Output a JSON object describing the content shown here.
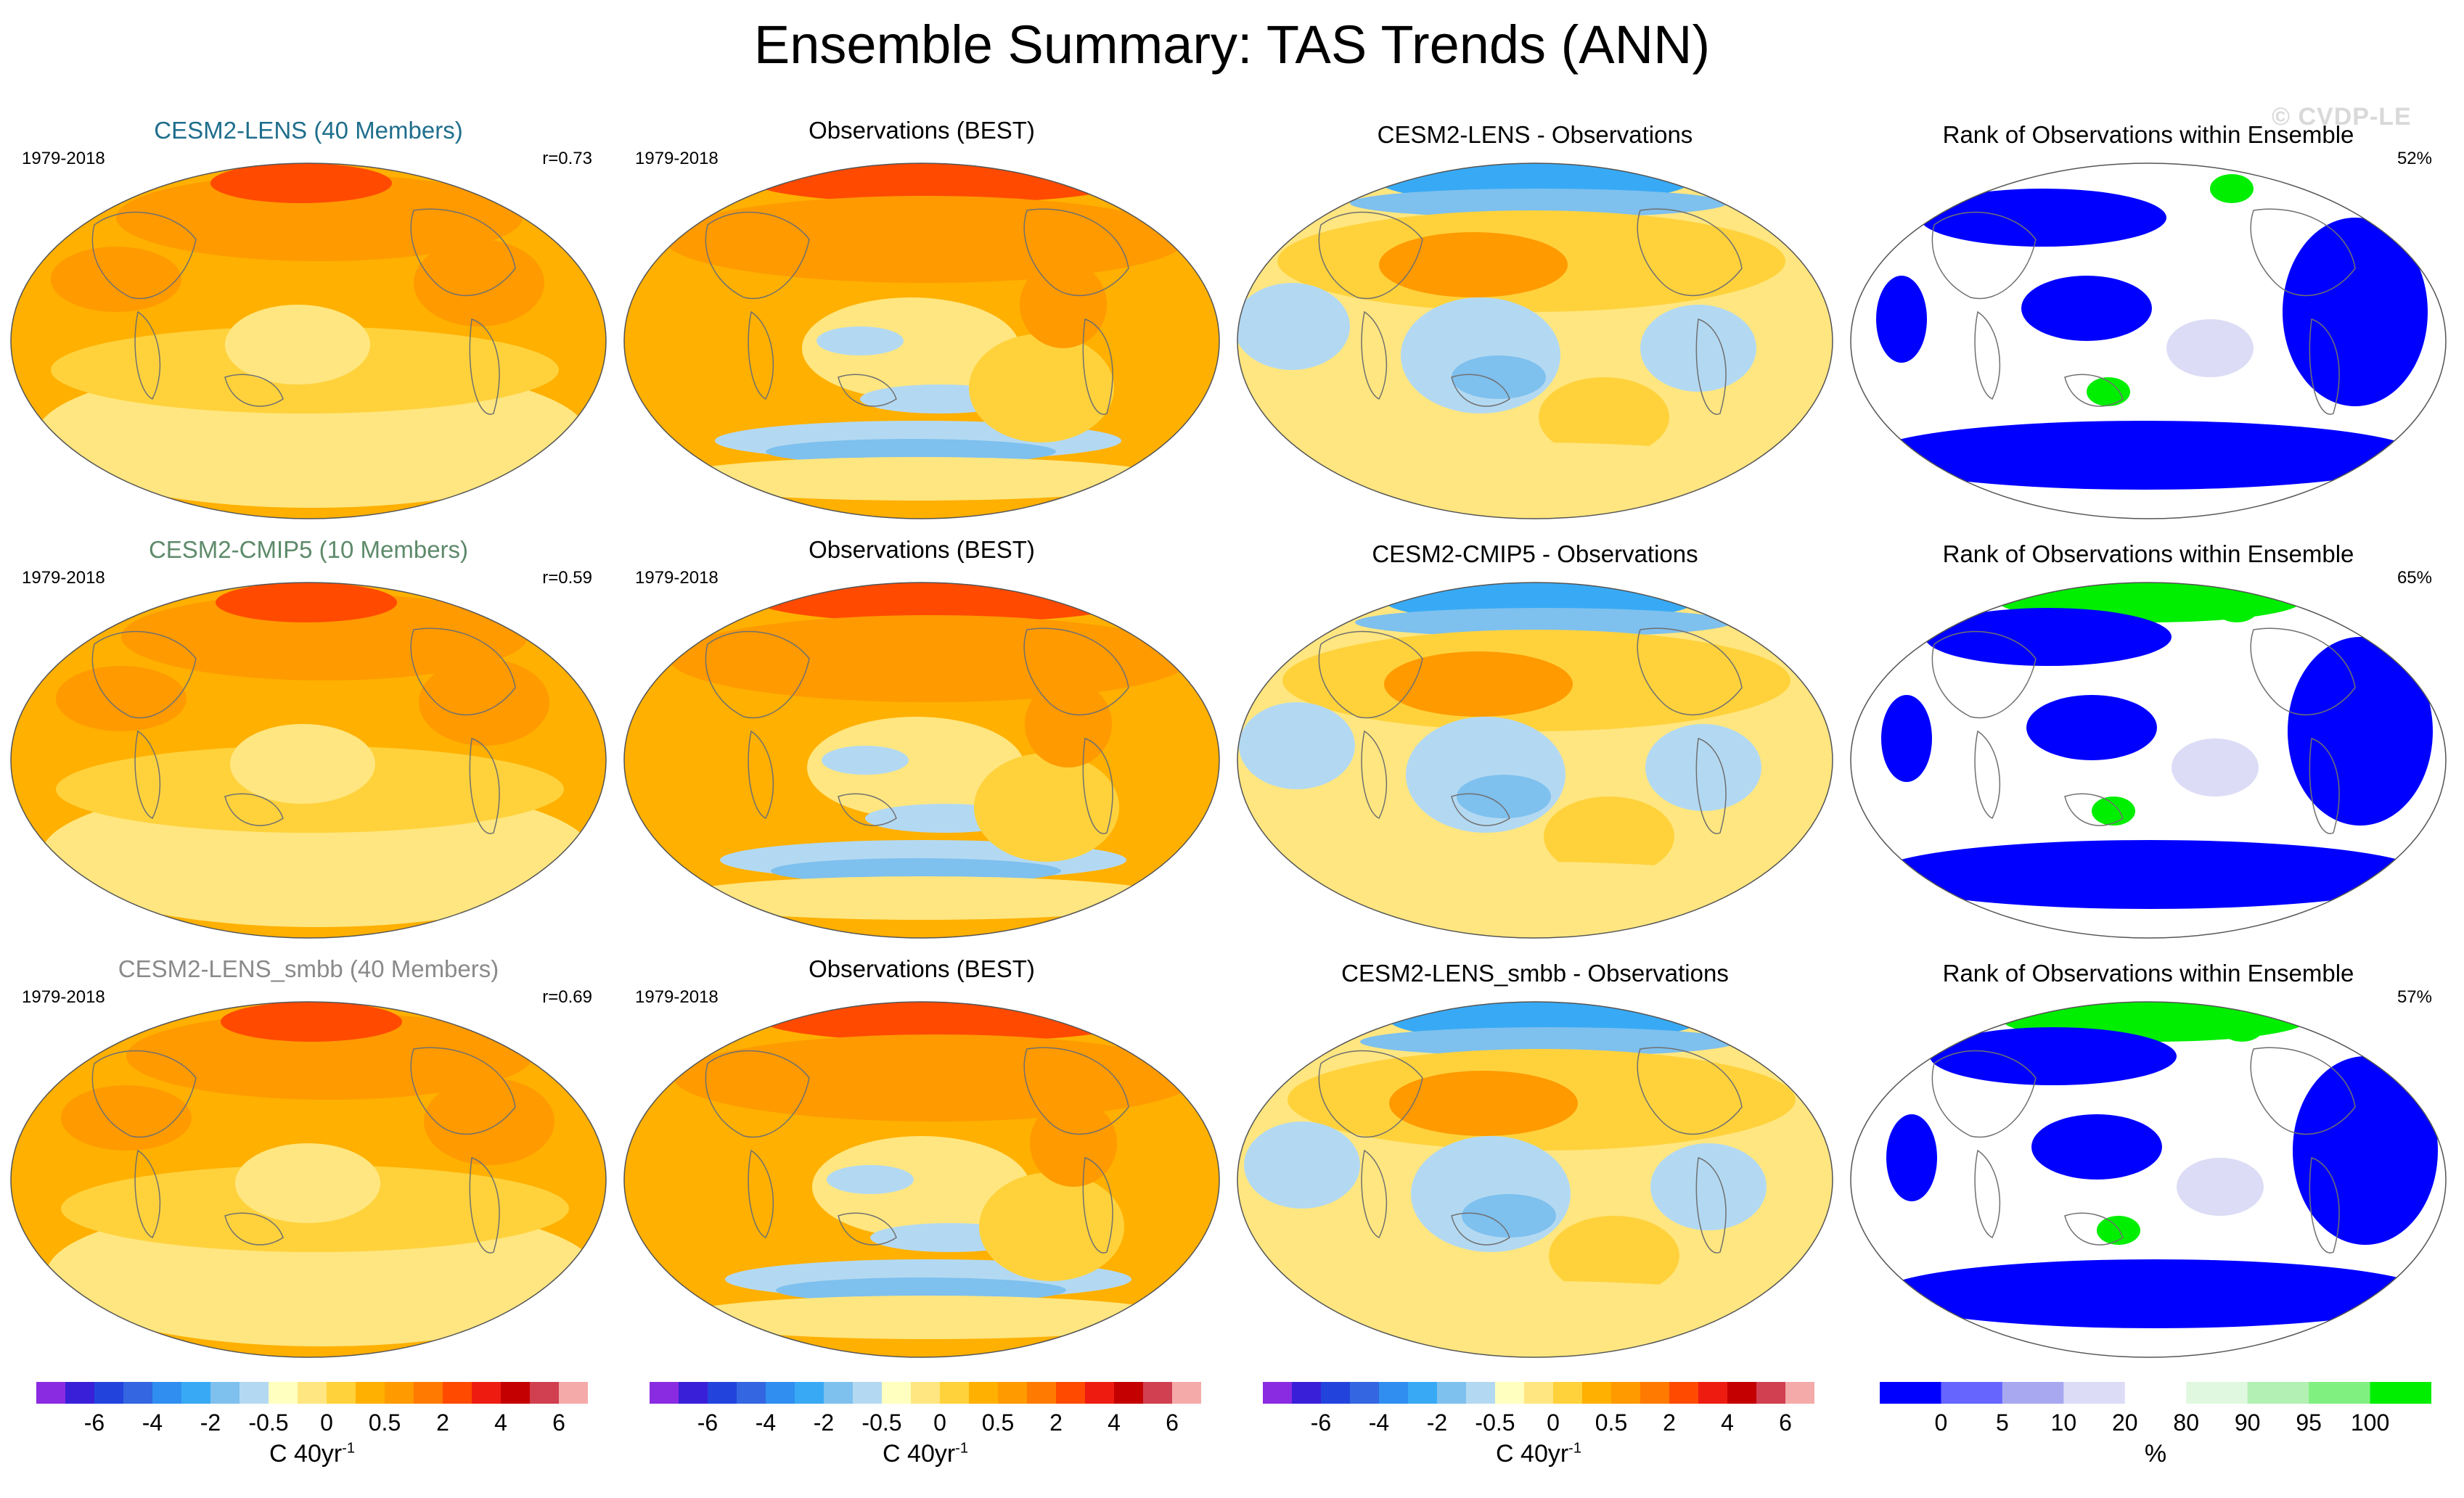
{
  "figure": {
    "title": "Ensemble Summary: TAS Trends (ANN)",
    "watermark": "© CVDP-LE"
  },
  "rows": [
    {
      "model_label": "CESM2-LENS (40 Members)",
      "model_label_color": "#1f6e8c",
      "period": "1979-2018",
      "correlation": "r=0.73",
      "obs_label": "Observations (BEST)",
      "diff_label": "CESM2-LENS - Observations",
      "rank_label": "Rank of Observations within Ensemble",
      "rank_pct": "52%"
    },
    {
      "model_label": "CESM2-CMIP5 (10 Members)",
      "model_label_color": "#5d8a6a",
      "period": "1979-2018",
      "correlation": "r=0.59",
      "obs_label": "Observations (BEST)",
      "diff_label": "CESM2-CMIP5 - Observations",
      "rank_label": "Rank of Observations within Ensemble",
      "rank_pct": "65%"
    },
    {
      "model_label": "CESM2-LENS_smbb (40 Members)",
      "model_label_color": "#8a8a8a",
      "period": "1979-2018",
      "correlation": "r=0.69",
      "obs_label": "Observations (BEST)",
      "diff_label": "CESM2-LENS_smbb - Observations",
      "rank_label": "Rank of Observations within Ensemble",
      "rank_pct": "57%"
    }
  ],
  "trend_colorbar": {
    "unit": "C 40yr",
    "unit_sup": "-1",
    "tick_labels": [
      "-6",
      "-4",
      "-2",
      "-0.5",
      "0",
      "0.5",
      "2",
      "4",
      "6"
    ],
    "colors": [
      "#8a2be2",
      "#3a1fd8",
      "#2244dd",
      "#3366e0",
      "#2f8ef0",
      "#38aaf5",
      "#7ec0ee",
      "#b3d9f2",
      "#ffffc0",
      "#ffe680",
      "#ffd23c",
      "#ffb000",
      "#ff9a00",
      "#ff7a00",
      "#ff4a00",
      "#ee1c10",
      "#c40000",
      "#d04050",
      "#f5aaaa"
    ]
  },
  "rank_colorbar": {
    "unit": "%",
    "tick_labels": [
      "0",
      "5",
      "10",
      "20",
      "80",
      "90",
      "95",
      "100"
    ],
    "colors": [
      "#0000ff",
      "#6666ff",
      "#a8a8f0",
      "#dcdcf6",
      "#ffffff",
      "#dff8df",
      "#b3f0b3",
      "#80f080",
      "#00ee00"
    ]
  },
  "palette": {
    "orange": "#ffb000",
    "dark_orange": "#ff9a00",
    "yellow": "#ffd23c",
    "light_yellow": "#ffe680",
    "pale": "#ffffc0",
    "red": "#ff4a00",
    "light_blue": "#b3d9f2",
    "mid_blue": "#7ec0ee",
    "blue": "#38aaf5",
    "rank_blue": "#0000ff",
    "rank_green": "#00ee00",
    "rank_lavender": "#dcdcf6"
  }
}
